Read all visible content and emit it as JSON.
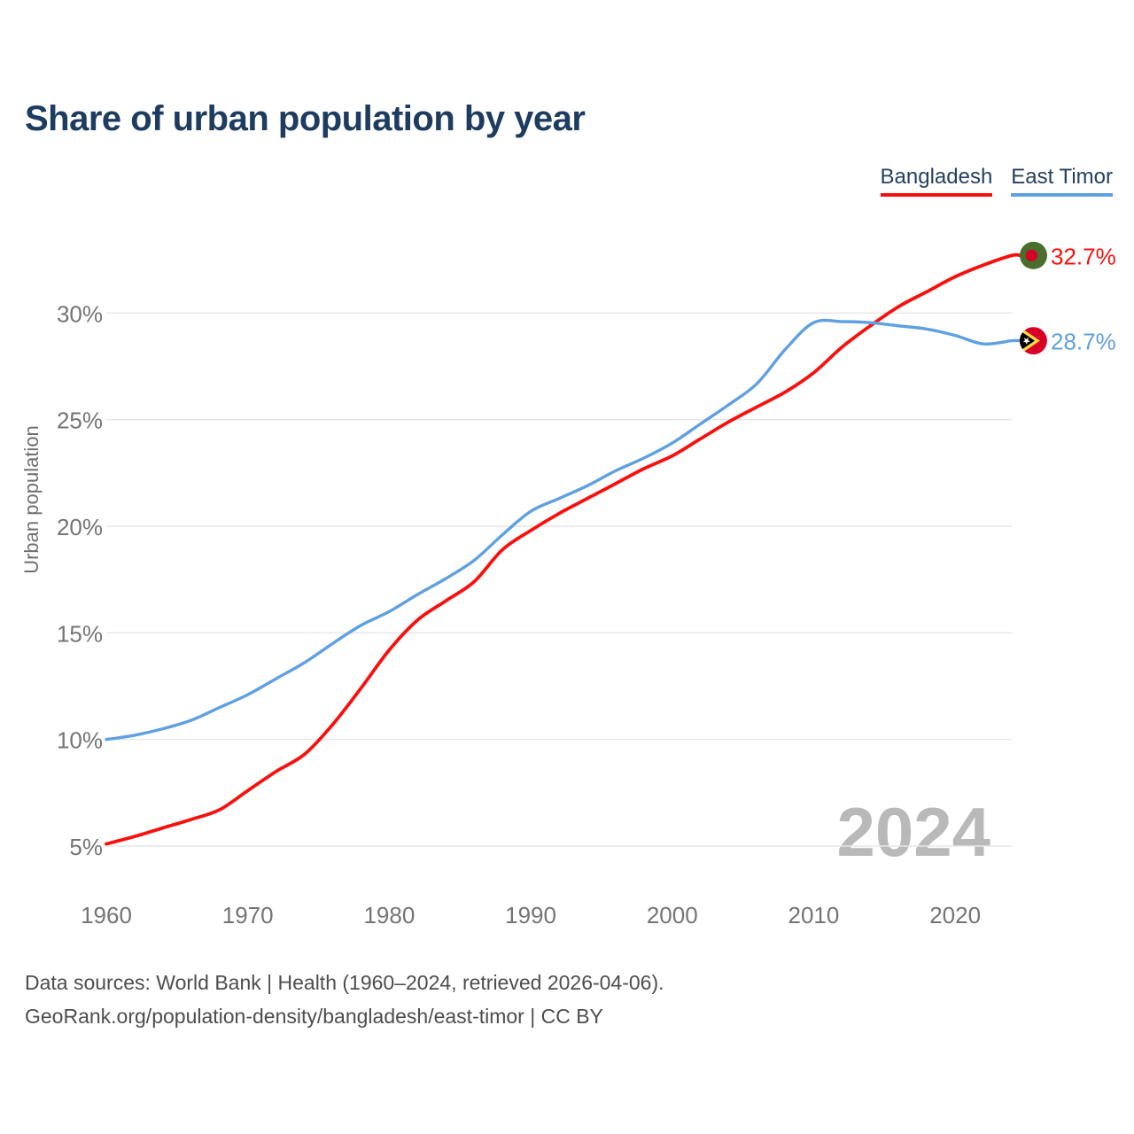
{
  "header": {
    "title": "Share of urban population by year"
  },
  "legend": {
    "items": [
      {
        "label": "Bangladesh",
        "color": "#f8100e"
      },
      {
        "label": "East Timor",
        "color": "#5fa0e1"
      }
    ]
  },
  "chart_data": {
    "type": "line",
    "title": "Share of urban population by year",
    "xlabel": "",
    "ylabel": "Urban population",
    "watermark": "2024",
    "xlim": [
      1960,
      2024
    ],
    "ylim": [
      5,
      33.5
    ],
    "x_ticks": [
      1960,
      1970,
      1980,
      1990,
      2000,
      2010,
      2020
    ],
    "y_gridlines": [
      5,
      10,
      15,
      20,
      25,
      30
    ],
    "y_tick_suffix": "%",
    "grid": "horizontal-only",
    "legend_position": "top-right",
    "x": [
      1960,
      1962,
      1964,
      1966,
      1968,
      1970,
      1972,
      1974,
      1976,
      1978,
      1980,
      1982,
      1984,
      1986,
      1988,
      1990,
      1992,
      1994,
      1996,
      1998,
      2000,
      2002,
      2004,
      2006,
      2008,
      2010,
      2012,
      2014,
      2016,
      2018,
      2020,
      2022,
      2024
    ],
    "series": [
      {
        "name": "Bangladesh",
        "color": "#f8100e",
        "end_label": "32.7%",
        "end_value": 32.7,
        "flag": "bangladesh",
        "values": [
          5.1,
          5.45,
          5.85,
          6.25,
          6.7,
          7.6,
          8.5,
          9.3,
          10.7,
          12.4,
          14.2,
          15.6,
          16.5,
          17.4,
          18.9,
          19.8,
          20.6,
          21.3,
          22.0,
          22.7,
          23.3,
          24.1,
          24.9,
          25.6,
          26.3,
          27.2,
          28.4,
          29.4,
          30.3,
          31.0,
          31.7,
          32.25,
          32.7
        ]
      },
      {
        "name": "East Timor",
        "color": "#5fa0e1",
        "end_label": "28.7%",
        "end_value": 28.7,
        "flag": "east-timor",
        "values": [
          10.0,
          10.2,
          10.5,
          10.9,
          11.5,
          12.1,
          12.85,
          13.6,
          14.5,
          15.35,
          16.0,
          16.8,
          17.55,
          18.4,
          19.6,
          20.7,
          21.3,
          21.9,
          22.6,
          23.2,
          23.9,
          24.8,
          25.7,
          26.7,
          28.3,
          29.55,
          29.6,
          29.55,
          29.4,
          29.25,
          28.95,
          28.55,
          28.7
        ]
      }
    ],
    "flag_colors": {
      "bangladesh": {
        "bg": "#496e2d",
        "disc": "#d80027"
      },
      "east_timor": {
        "bg": "#d80027",
        "chevron": "#ffda44",
        "triangle": "#000000",
        "star": "#ffffff"
      }
    },
    "style": {
      "grid_color": "#e7e7e7",
      "tick_color": "#747474",
      "axis_title_color": "#6e6e6e",
      "watermark_color": "#b9b9b9"
    }
  },
  "footer": {
    "line1": "Data sources: World Bank | Health (1960–2024, retrieved 2026-04-06).",
    "line2": "GeoRank.org/population-density/bangladesh/east-timor | CC BY"
  }
}
